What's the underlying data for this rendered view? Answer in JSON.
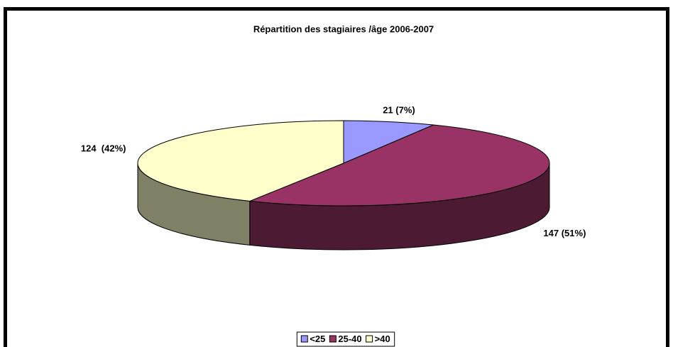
{
  "chart_data": {
    "type": "pie3d",
    "title": "Répartition des stagiaires /âge 2006-2007",
    "categories": [
      "<25",
      "25-40",
      ">40"
    ],
    "values": [
      21,
      147,
      124
    ],
    "value_labels": [
      "21 (7%)",
      "147 (51%)",
      "124  (42%)"
    ],
    "colors": [
      "#9999ff",
      "#993366",
      "#ffffcc"
    ],
    "legend": "bottom"
  }
}
